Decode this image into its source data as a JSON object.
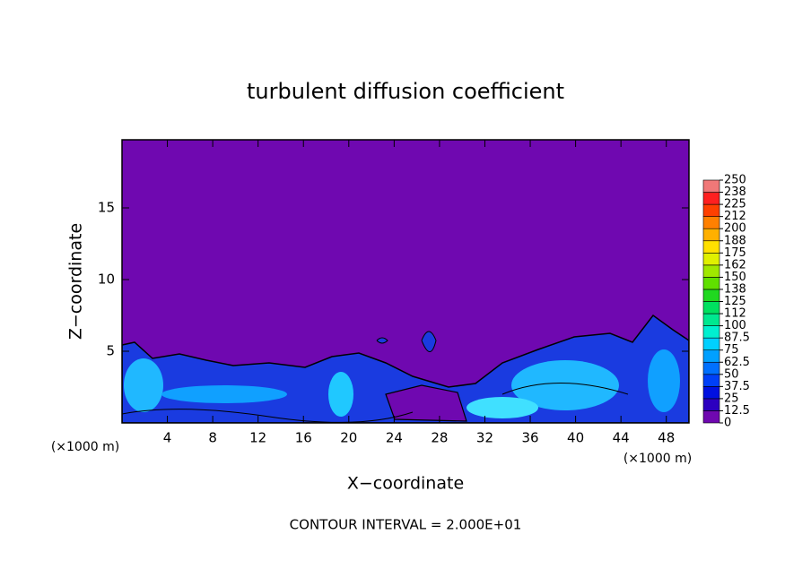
{
  "chart_data": {
    "type": "contour",
    "title": "turbulent diffusion coefficient",
    "xlabel": "X−coordinate",
    "ylabel": "Z−coordinate",
    "x_unit": "(×1000 m)",
    "y_unit": "(×1000 m)",
    "annotation": "CONTOUR INTERVAL = 2.000E+01",
    "xlim": [
      0,
      50
    ],
    "ylim": [
      0,
      19.75
    ],
    "xticks": [
      4,
      8,
      12,
      16,
      20,
      24,
      28,
      32,
      36,
      40,
      44,
      48
    ],
    "yticks": [
      5,
      10,
      15
    ],
    "colorbar": {
      "ticks": [
        0,
        12.5,
        25,
        37.5,
        50,
        62.5,
        75,
        87.5,
        100,
        {
          "value": 112.5,
          "label": "112"
        },
        125,
        {
          "value": 137.5,
          "label": "138"
        },
        150,
        {
          "value": 162.5,
          "label": "162"
        },
        175,
        {
          "value": 187.5,
          "label": "188"
        },
        200,
        {
          "value": 212.5,
          "label": "212"
        },
        225,
        {
          "value": 237.5,
          "label": "238"
        },
        250
      ],
      "colors": [
        "#6f08b0",
        "#2c00c0",
        "#0010e0",
        "#0040f8",
        "#0070ff",
        "#00a0ff",
        "#00d0ff",
        "#00f0d0",
        "#00e890",
        "#00e060",
        "#20d820",
        "#60e000",
        "#a0e800",
        "#e0f000",
        "#ffe000",
        "#ffb000",
        "#ff8000",
        "#ff4000",
        "#ff2020",
        "#f07878"
      ]
    }
  }
}
